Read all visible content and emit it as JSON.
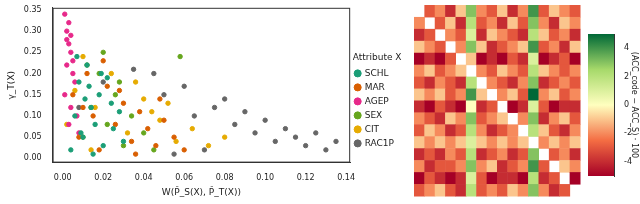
{
  "chart_data": [
    {
      "type": "scatter",
      "x_label": "W(P̂_S(X), P̂_T(X))",
      "y_label": "γ_T(X)",
      "legend": "right",
      "legend_title": "Attribute X",
      "grid": false,
      "xlim": [
        -0.005,
        0.142
      ],
      "ylim": [
        -0.01,
        0.355
      ],
      "xticks": [
        {
          "value": 0,
          "label": "0.00"
        },
        {
          "value": 0.02,
          "label": "0.02"
        },
        {
          "value": 0.04,
          "label": "0.04"
        },
        {
          "value": 0.06,
          "label": "0.06"
        },
        {
          "value": 0.08,
          "label": "0.08"
        },
        {
          "value": 0.1,
          "label": "0.10"
        },
        {
          "value": 0.12,
          "label": "0.12"
        },
        {
          "value": 0.14,
          "label": "0.14"
        }
      ],
      "yticks": [
        {
          "value": 0,
          "label": "0.00"
        },
        {
          "value": 0.05,
          "label": "0.05"
        },
        {
          "value": 0.1,
          "label": "0.10"
        },
        {
          "value": 0.15,
          "label": "0.15"
        },
        {
          "value": 0.2,
          "label": "0.20"
        },
        {
          "value": 0.25,
          "label": "0.25"
        },
        {
          "value": 0.3,
          "label": "0.30"
        },
        {
          "value": 0.35,
          "label": "0.35"
        }
      ],
      "series": [
        {
          "name": "SCHL",
          "color": "#1b9e77",
          "x": [
            0.004,
            0.006,
            0.008,
            0.01,
            0.012,
            0.014,
            0.016,
            0.018,
            0.02,
            0.022,
            0.025,
            0.028,
            0.007,
            0.011,
            0.015,
            0.019,
            0.009,
            0.013,
            0.024,
            0.03
          ],
          "values": [
            0.02,
            0.1,
            0.18,
            0.05,
            0.22,
            0.12,
            0.08,
            0.15,
            0.03,
            0.19,
            0.07,
            0.11,
            0.24,
            0.14,
            0.01,
            0.2,
            0.06,
            0.17,
            0.13,
            0.04
          ]
        },
        {
          "name": "MAR",
          "color": "#d95f02",
          "x": [
            0.005,
            0.008,
            0.012,
            0.015,
            0.018,
            0.022,
            0.026,
            0.03,
            0.034,
            0.038,
            0.042,
            0.046,
            0.05,
            0.055,
            0.06,
            0.01,
            0.02,
            0.028,
            0.036,
            0.048
          ],
          "values": [
            0.15,
            0.05,
            0.2,
            0.1,
            0.02,
            0.17,
            0.08,
            0.13,
            0.04,
            0.11,
            0.07,
            0.03,
            0.09,
            0.05,
            0.02,
            0.12,
            0.23,
            0.16,
            0.01,
            0.14
          ]
        },
        {
          "name": "AGEP",
          "color": "#e7298a",
          "x": [
            0.001,
            0.002,
            0.003,
            0.004,
            0.002,
            0.003,
            0.005,
            0.006,
            0.001,
            0.004,
            0.007,
            0.003,
            0.002,
            0.005,
            0.008,
            0.004
          ],
          "values": [
            0.34,
            0.3,
            0.27,
            0.25,
            0.22,
            0.32,
            0.2,
            0.18,
            0.15,
            0.12,
            0.1,
            0.08,
            0.28,
            0.23,
            0.06,
            0.29
          ]
        },
        {
          "name": "SEX",
          "color": "#66a61e",
          "x": [
            0.01,
            0.014,
            0.018,
            0.022,
            0.026,
            0.03,
            0.034,
            0.04,
            0.045,
            0.012,
            0.02,
            0.028,
            0.058
          ],
          "values": [
            0.05,
            0.12,
            0.2,
            0.08,
            0.15,
            0.03,
            0.1,
            0.06,
            0.02,
            0.22,
            0.25,
            0.18,
            0.24
          ]
        },
        {
          "name": "CIT",
          "color": "#e6ab02",
          "x": [
            0.002,
            0.006,
            0.01,
            0.016,
            0.024,
            0.032,
            0.04,
            0.048,
            0.056,
            0.064,
            0.072,
            0.08,
            0.014,
            0.036,
            0.044,
            0.052
          ],
          "values": [
            0.08,
            0.16,
            0.24,
            0.12,
            0.2,
            0.06,
            0.14,
            0.09,
            0.04,
            0.07,
            0.03,
            0.05,
            0.02,
            0.18,
            0.11,
            0.13
          ]
        },
        {
          "name": "RAC1P",
          "color": "#666666",
          "x": [
            0.008,
            0.02,
            0.035,
            0.05,
            0.065,
            0.075,
            0.085,
            0.095,
            0.1,
            0.105,
            0.11,
            0.115,
            0.12,
            0.125,
            0.13,
            0.135,
            0.06,
            0.08,
            0.09,
            0.045,
            0.07,
            0.055
          ],
          "values": [
            0.12,
            0.18,
            0.21,
            0.15,
            0.1,
            0.12,
            0.08,
            0.06,
            0.09,
            0.04,
            0.07,
            0.05,
            0.03,
            0.06,
            0.02,
            0.04,
            0.17,
            0.14,
            0.11,
            0.2,
            0.02,
            0.01
          ]
        }
      ]
    },
    {
      "type": "heatmap",
      "tick_labels": false,
      "cells": [
        [
          null,
          -3,
          -2,
          -4,
          -1,
          3,
          -2,
          -3,
          -1,
          -4,
          -2,
          4,
          -3,
          -1,
          -2,
          -3
        ],
        [
          -2,
          null,
          -3,
          -1,
          -4,
          2,
          -3,
          -2,
          -4,
          -1,
          -3,
          3,
          -2,
          -4,
          -1,
          -2
        ],
        [
          -4,
          -3,
          null,
          -2,
          -3,
          1,
          -4,
          -1,
          -2,
          -3,
          -4,
          2,
          -1,
          -3,
          -2,
          -4
        ],
        [
          -1,
          -2,
          -3,
          null,
          -2,
          3,
          -1,
          -4,
          -3,
          -2,
          -1,
          4,
          -3,
          -2,
          -4,
          -1
        ],
        [
          -5,
          -4,
          -5,
          -3,
          null,
          -1,
          -5,
          -4,
          -5,
          -3,
          -4,
          1,
          -5,
          -4,
          -3,
          -5
        ],
        [
          -2,
          -1,
          -3,
          -2,
          -1,
          null,
          -2,
          -3,
          -1,
          -2,
          -3,
          2,
          -1,
          -2,
          -3,
          -2
        ],
        [
          -3,
          -4,
          -2,
          -3,
          -4,
          2,
          null,
          -2,
          -3,
          -4,
          -2,
          3,
          -4,
          -3,
          -2,
          -3
        ],
        [
          -1,
          -2,
          -1,
          -3,
          -2,
          4,
          -1,
          null,
          -2,
          -1,
          -3,
          5,
          -2,
          -1,
          -3,
          -2
        ],
        [
          -4,
          -5,
          -3,
          -4,
          -5,
          0,
          -4,
          -3,
          null,
          -5,
          -4,
          1,
          -3,
          -5,
          -4,
          -4
        ],
        [
          -2,
          -3,
          -4,
          -1,
          -2,
          3,
          -3,
          -2,
          -1,
          null,
          -2,
          3,
          -4,
          -2,
          -1,
          -3
        ],
        [
          -3,
          -1,
          -2,
          -4,
          -3,
          2,
          -2,
          -4,
          -3,
          -2,
          null,
          2,
          -1,
          -3,
          -4,
          -2
        ],
        [
          -1,
          -2,
          -1,
          -2,
          -1,
          1,
          -1,
          -2,
          -1,
          -2,
          -1,
          null,
          -2,
          -1,
          -2,
          -1
        ],
        [
          -4,
          -3,
          -4,
          -2,
          -3,
          2,
          -4,
          -3,
          -2,
          -4,
          -3,
          3,
          null,
          -3,
          -2,
          -4
        ],
        [
          -2,
          -4,
          -3,
          -3,
          -2,
          3,
          -2,
          -1,
          -4,
          -3,
          -2,
          4,
          -3,
          null,
          -1,
          -2
        ],
        [
          -5,
          -3,
          -4,
          -5,
          -4,
          1,
          -3,
          -5,
          -4,
          -4,
          -5,
          2,
          -4,
          -3,
          null,
          -5
        ],
        [
          -3,
          -2,
          -1,
          -3,
          -4,
          2,
          -3,
          -2,
          -3,
          -1,
          -2,
          3,
          -2,
          -4,
          -3,
          null
        ]
      ],
      "colorbar": {
        "label": "(ACC_code − ACC_S) · 100",
        "range": [
          -5,
          5
        ],
        "ticks": [
          -4,
          -2,
          0,
          2,
          4
        ]
      }
    }
  ]
}
